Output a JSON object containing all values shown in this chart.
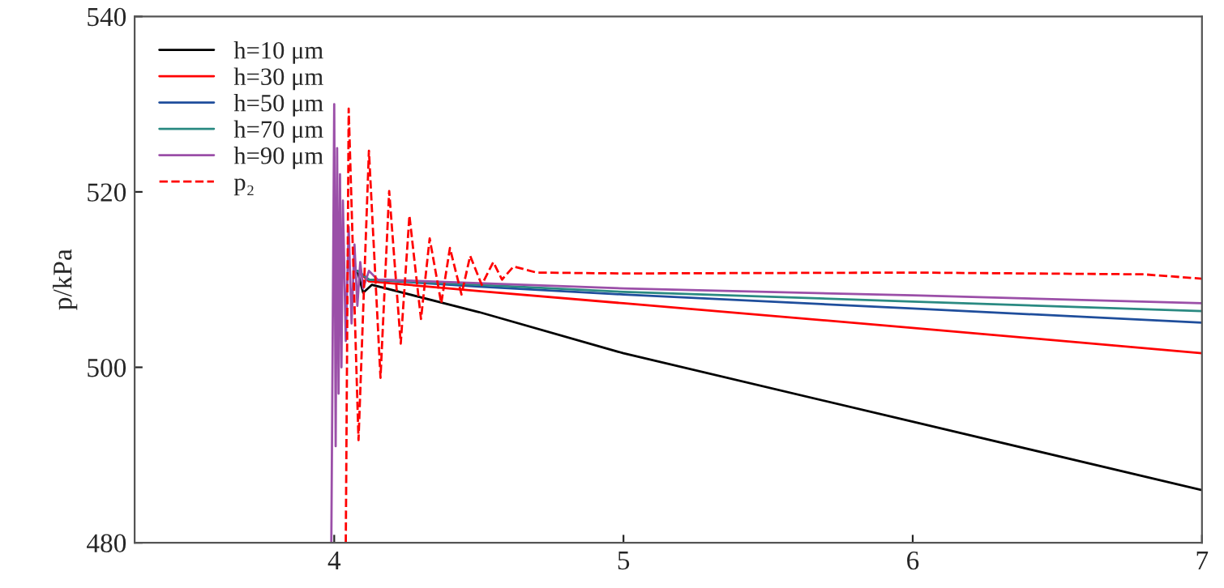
{
  "chart_data": {
    "type": "line",
    "ylabel": "p/kPa",
    "xlim": [
      3.31,
      7
    ],
    "ylim": [
      480,
      540
    ],
    "xticks": [
      4,
      5,
      6,
      7
    ],
    "yticks": [
      480,
      500,
      520,
      540
    ],
    "grid": false,
    "legend": "top left",
    "marker": "none",
    "series": [
      {
        "name": "h=10 μm",
        "color": "#000000",
        "line_style": "solid",
        "x": [
          4.08,
          4.1,
          4.13,
          4.5,
          5,
          6,
          7
        ],
        "values": [
          511,
          508.5,
          509.4,
          506.3,
          501.6,
          493.8,
          486.0
        ]
      },
      {
        "name": "h=30 μm",
        "color": "#ff0000",
        "line_style": "solid",
        "x": [
          4.08,
          4.12,
          4.5,
          5,
          6,
          7
        ],
        "values": [
          511,
          509.8,
          508.7,
          507.3,
          504.5,
          501.6
        ]
      },
      {
        "name": "h=50 μm",
        "color": "#1f4e9c",
        "line_style": "solid",
        "x": [
          4.08,
          4.12,
          4.5,
          5,
          6,
          7
        ],
        "values": [
          511,
          510,
          509.2,
          508.3,
          506.7,
          505.1
        ]
      },
      {
        "name": "h=70 μm",
        "color": "#2a8a82",
        "line_style": "solid",
        "x": [
          4.08,
          4.12,
          4.5,
          5,
          6,
          7
        ],
        "values": [
          511,
          510,
          509.4,
          508.6,
          507.5,
          506.4
        ]
      },
      {
        "name": "h=90 μm",
        "color": "#9b4fa8",
        "line_style": "solid",
        "x": [
          3.99,
          4.0,
          4.005,
          4.01,
          4.015,
          4.02,
          4.025,
          4.03,
          4.04,
          4.05,
          4.06,
          4.07,
          4.08,
          4.09,
          4.1,
          4.12,
          4.15,
          4.5,
          5,
          6,
          7
        ],
        "values": [
          480,
          530,
          491,
          525,
          497,
          522,
          500,
          519,
          503,
          516,
          505,
          514,
          507,
          512,
          509,
          511,
          510,
          509.6,
          509,
          508.2,
          507.3
        ]
      },
      {
        "name": "p₂",
        "color": "#ff0000",
        "line_style": "dashed",
        "x": [
          4.04,
          4.05,
          4.084,
          4.12,
          4.16,
          4.19,
          4.23,
          4.26,
          4.3,
          4.33,
          4.37,
          4.4,
          4.44,
          4.47,
          4.51,
          4.55,
          4.58,
          4.62,
          4.7,
          5,
          6,
          6.8,
          7
        ],
        "values": [
          480,
          529.5,
          491.7,
          524.7,
          498.8,
          520.1,
          502.7,
          517.3,
          505.5,
          514.7,
          507.3,
          513.6,
          508.3,
          512.7,
          509.4,
          512,
          510,
          511.5,
          510.8,
          510.7,
          510.8,
          510.6,
          510.1
        ]
      }
    ]
  }
}
